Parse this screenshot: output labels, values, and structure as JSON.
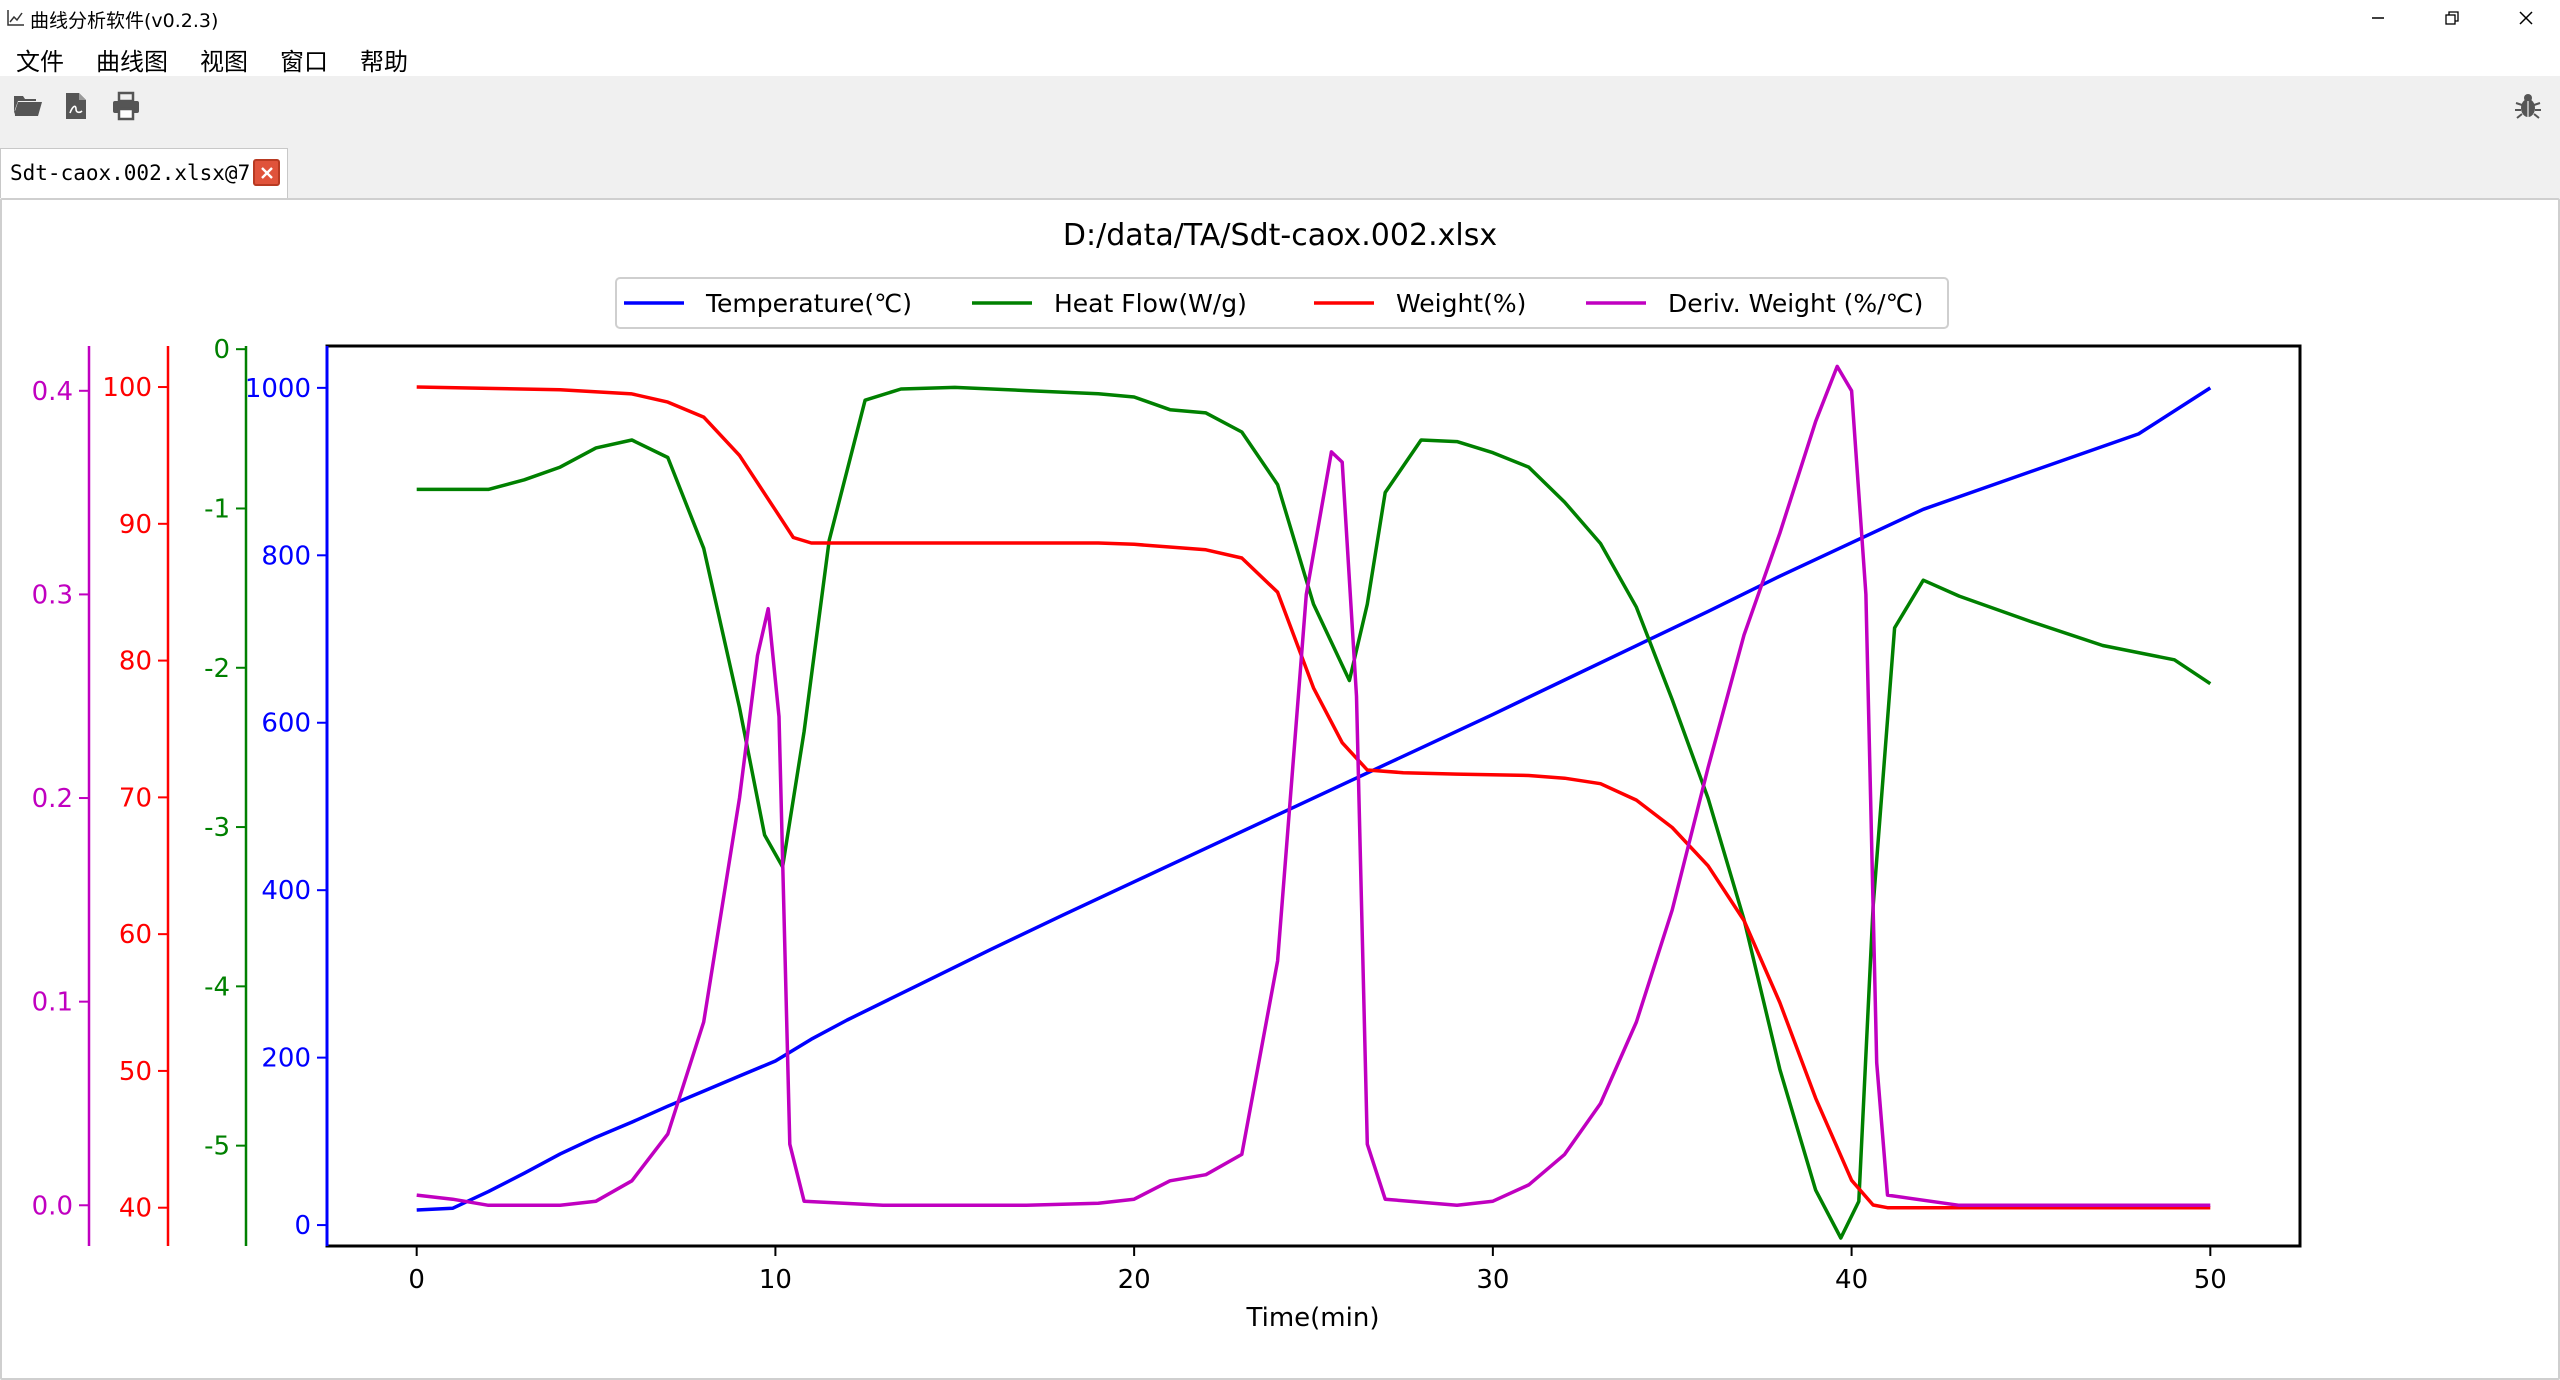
{
  "window": {
    "title": "曲线分析软件(v0.2.3)",
    "app_icon": "chart-line-icon",
    "controls": [
      "minimize-icon",
      "restore-icon",
      "close-icon"
    ]
  },
  "menu": {
    "items": [
      "文件",
      "曲线图",
      "视图",
      "窗口",
      "帮助"
    ]
  },
  "toolbar": {
    "left_icons": [
      "folder-open-icon",
      "pdf-file-icon",
      "print-icon"
    ],
    "right_icon": "bug-icon"
  },
  "tab": {
    "label": "Sdt-caox.002.xlsx@7",
    "close_icon": "close-icon"
  },
  "colors": {
    "temperature": "#0000ff",
    "heat_flow": "#008000",
    "weight": "#ff0000",
    "deriv_weight": "#c000c0",
    "tab_close": "#e0533b"
  },
  "chart_data": {
    "type": "line",
    "title": "D:/data/TA/Sdt-caox.002.xlsx",
    "xlabel": "Time(min)",
    "xlim": [
      -2.5,
      52.5
    ],
    "x_ticks": [
      "0",
      "10",
      "20",
      "30",
      "40",
      "50"
    ],
    "legend": {
      "placement": "top-center",
      "entries": [
        "Temperature(℃)",
        "Heat Flow(W/g)",
        "Weight(%)",
        "Deriv. Weight (%/℃)"
      ]
    },
    "axes": {
      "temperature": {
        "side": "left",
        "ylim": [
          -25,
          1050
        ],
        "ticks": [
          "0",
          "200",
          "400",
          "600",
          "800",
          "1000"
        ]
      },
      "heat_flow": {
        "side": "left",
        "ylim": [
          -5.63,
          0.02
        ],
        "ticks": [
          "0",
          "-1",
          "-2",
          "-3",
          "-4",
          "-5"
        ]
      },
      "weight": {
        "side": "left",
        "ylim": [
          37.2,
          103.0
        ],
        "ticks": [
          "40",
          "50",
          "60",
          "70",
          "80",
          "90",
          "100"
        ]
      },
      "deriv_weight": {
        "side": "left",
        "ylim": [
          -0.02,
          0.422
        ],
        "ticks": [
          "0.0",
          "0.1",
          "0.2",
          "0.3",
          "0.4"
        ]
      }
    },
    "series": [
      {
        "name": "Temperature(℃)",
        "axis": "temperature",
        "points": [
          [
            0,
            18
          ],
          [
            1,
            20
          ],
          [
            2,
            40
          ],
          [
            3,
            62
          ],
          [
            4,
            85
          ],
          [
            5,
            105
          ],
          [
            6,
            123
          ],
          [
            7,
            142
          ],
          [
            8,
            160
          ],
          [
            9,
            178
          ],
          [
            10,
            196
          ],
          [
            11,
            222
          ],
          [
            12,
            245
          ],
          [
            14,
            287
          ],
          [
            16,
            329
          ],
          [
            18,
            370
          ],
          [
            20,
            410
          ],
          [
            22,
            450
          ],
          [
            24,
            490
          ],
          [
            26,
            530
          ],
          [
            28,
            570
          ],
          [
            30,
            610
          ],
          [
            32,
            651
          ],
          [
            34,
            692
          ],
          [
            36,
            733
          ],
          [
            38,
            775
          ],
          [
            40,
            815
          ],
          [
            42,
            855
          ],
          [
            44,
            885
          ],
          [
            46,
            915
          ],
          [
            48,
            945
          ],
          [
            50,
            1000
          ]
        ]
      },
      {
        "name": "Heat Flow(W/g)",
        "axis": "heat_flow",
        "points": [
          [
            0,
            -0.88
          ],
          [
            1,
            -0.88
          ],
          [
            2,
            -0.88
          ],
          [
            3,
            -0.82
          ],
          [
            4,
            -0.74
          ],
          [
            5,
            -0.62
          ],
          [
            6,
            -0.57
          ],
          [
            7,
            -0.68
          ],
          [
            8,
            -1.25
          ],
          [
            9,
            -2.25
          ],
          [
            9.7,
            -3.05
          ],
          [
            10.2,
            -3.25
          ],
          [
            10.8,
            -2.4
          ],
          [
            11.5,
            -1.2
          ],
          [
            12.5,
            -0.32
          ],
          [
            13.5,
            -0.25
          ],
          [
            15,
            -0.24
          ],
          [
            17,
            -0.26
          ],
          [
            19,
            -0.28
          ],
          [
            20,
            -0.3
          ],
          [
            21,
            -0.38
          ],
          [
            22,
            -0.4
          ],
          [
            23,
            -0.52
          ],
          [
            24,
            -0.85
          ],
          [
            25,
            -1.6
          ],
          [
            26,
            -2.08
          ],
          [
            26.5,
            -1.6
          ],
          [
            27,
            -0.9
          ],
          [
            28,
            -0.57
          ],
          [
            29,
            -0.58
          ],
          [
            30,
            -0.65
          ],
          [
            31,
            -0.74
          ],
          [
            32,
            -0.96
          ],
          [
            33,
            -1.22
          ],
          [
            34,
            -1.62
          ],
          [
            35,
            -2.2
          ],
          [
            36,
            -2.82
          ],
          [
            37,
            -3.58
          ],
          [
            38,
            -4.52
          ],
          [
            39,
            -5.28
          ],
          [
            39.7,
            -5.58
          ],
          [
            40.2,
            -5.35
          ],
          [
            40.6,
            -3.5
          ],
          [
            41.2,
            -1.75
          ],
          [
            42,
            -1.45
          ],
          [
            43,
            -1.55
          ],
          [
            45,
            -1.71
          ],
          [
            47,
            -1.86
          ],
          [
            49,
            -1.95
          ],
          [
            50,
            -2.1
          ]
        ]
      },
      {
        "name": "Weight(%)",
        "axis": "weight",
        "points": [
          [
            0,
            100
          ],
          [
            2,
            99.9
          ],
          [
            4,
            99.8
          ],
          [
            6,
            99.5
          ],
          [
            7,
            98.9
          ],
          [
            8,
            97.8
          ],
          [
            9,
            95
          ],
          [
            10,
            91
          ],
          [
            10.5,
            89
          ],
          [
            11,
            88.6
          ],
          [
            13,
            88.6
          ],
          [
            15,
            88.6
          ],
          [
            17,
            88.6
          ],
          [
            19,
            88.6
          ],
          [
            20,
            88.5
          ],
          [
            22,
            88.1
          ],
          [
            23,
            87.5
          ],
          [
            24,
            85
          ],
          [
            25,
            78
          ],
          [
            25.8,
            74
          ],
          [
            26.5,
            72
          ],
          [
            27.5,
            71.8
          ],
          [
            29,
            71.7
          ],
          [
            31,
            71.6
          ],
          [
            32,
            71.4
          ],
          [
            33,
            71
          ],
          [
            34,
            69.8
          ],
          [
            35,
            67.8
          ],
          [
            36,
            65
          ],
          [
            37,
            61
          ],
          [
            38,
            55
          ],
          [
            39,
            48
          ],
          [
            40,
            42
          ],
          [
            40.6,
            40.2
          ],
          [
            41,
            40
          ],
          [
            45,
            40
          ],
          [
            50,
            40
          ]
        ]
      },
      {
        "name": "Deriv. Weight (%/℃)",
        "axis": "deriv_weight",
        "points": [
          [
            0,
            0.005
          ],
          [
            1,
            0.003
          ],
          [
            2,
            0.0
          ],
          [
            3,
            0.0
          ],
          [
            4,
            0.0
          ],
          [
            5,
            0.002
          ],
          [
            6,
            0.012
          ],
          [
            7,
            0.035
          ],
          [
            8,
            0.09
          ],
          [
            9,
            0.2
          ],
          [
            9.5,
            0.27
          ],
          [
            9.8,
            0.293
          ],
          [
            10.1,
            0.24
          ],
          [
            10.4,
            0.03
          ],
          [
            10.8,
            0.002
          ],
          [
            13,
            0.0
          ],
          [
            15,
            0.0
          ],
          [
            17,
            0.0
          ],
          [
            19,
            0.001
          ],
          [
            20,
            0.003
          ],
          [
            21,
            0.012
          ],
          [
            22,
            0.015
          ],
          [
            23,
            0.025
          ],
          [
            24,
            0.12
          ],
          [
            24.8,
            0.3
          ],
          [
            25.5,
            0.37
          ],
          [
            25.8,
            0.365
          ],
          [
            26.2,
            0.25
          ],
          [
            26.5,
            0.03
          ],
          [
            27,
            0.003
          ],
          [
            29,
            0.0
          ],
          [
            30,
            0.002
          ],
          [
            31,
            0.01
          ],
          [
            32,
            0.025
          ],
          [
            33,
            0.05
          ],
          [
            34,
            0.09
          ],
          [
            35,
            0.145
          ],
          [
            36,
            0.215
          ],
          [
            37,
            0.28
          ],
          [
            38,
            0.33
          ],
          [
            39,
            0.385
          ],
          [
            39.6,
            0.412
          ],
          [
            40,
            0.4
          ],
          [
            40.4,
            0.3
          ],
          [
            40.7,
            0.07
          ],
          [
            41,
            0.005
          ],
          [
            43,
            0.0
          ],
          [
            45,
            0.0
          ],
          [
            50,
            0.0
          ]
        ]
      }
    ]
  }
}
